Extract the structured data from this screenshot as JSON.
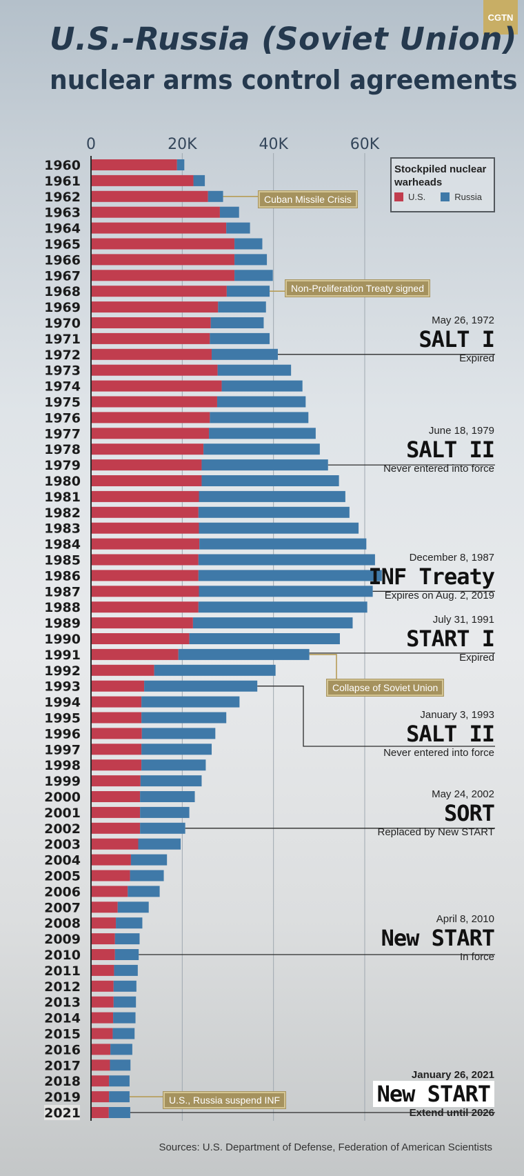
{
  "brand": "CGTN",
  "title": "U.S.-Russia (Soviet Union)",
  "subtitle": "nuclear arms control agreements",
  "legend": {
    "title": "Stockpiled nuclear warheads",
    "us": "U.S.",
    "russia": "Russia"
  },
  "colors": {
    "us": "#c13d4e",
    "russia": "#3f79a8",
    "tag": "#a5925e"
  },
  "chart_data": {
    "type": "bar",
    "orientation": "horizontal",
    "stacked": true,
    "xlim": [
      0,
      65000
    ],
    "xticks": [
      {
        "v": 0,
        "label": "0"
      },
      {
        "v": 20000,
        "label": "20K"
      },
      {
        "v": 40000,
        "label": "40K"
      },
      {
        "v": 60000,
        "label": "60K"
      }
    ],
    "grid": true,
    "categories": [
      "1960",
      "1961",
      "1962",
      "1963",
      "1964",
      "1965",
      "1966",
      "1967",
      "1968",
      "1969",
      "1970",
      "1971",
      "1972",
      "1973",
      "1974",
      "1975",
      "1976",
      "1977",
      "1978",
      "1979",
      "1980",
      "1981",
      "1982",
      "1983",
      "1984",
      "1985",
      "1986",
      "1987",
      "1988",
      "1989",
      "1990",
      "1991",
      "1992",
      "1993",
      "1994",
      "1995",
      "1996",
      "1997",
      "1998",
      "1999",
      "2000",
      "2001",
      "2002",
      "2003",
      "2004",
      "2005",
      "2006",
      "2007",
      "2008",
      "2009",
      "2010",
      "2011",
      "2012",
      "2013",
      "2014",
      "2015",
      "2016",
      "2017",
      "2018",
      "2019",
      "2021"
    ],
    "series": [
      {
        "name": "U.S.",
        "values": [
          18700,
          22300,
          25500,
          28100,
          29500,
          31300,
          31300,
          31300,
          29600,
          27700,
          26100,
          25900,
          26300,
          27600,
          28500,
          27500,
          25900,
          25700,
          24500,
          24100,
          24100,
          23500,
          23400,
          23500,
          23600,
          23400,
          23400,
          23500,
          23400,
          22200,
          21400,
          19000,
          13700,
          11500,
          10900,
          10900,
          11000,
          10900,
          10900,
          10700,
          10600,
          10600,
          10600,
          10200,
          8600,
          8400,
          7900,
          5700,
          5300,
          5100,
          5100,
          4900,
          4800,
          4800,
          4700,
          4600,
          4100,
          4000,
          3800,
          3800,
          3750
        ]
      },
      {
        "name": "Russia",
        "values": [
          1600,
          2500,
          3300,
          4200,
          5200,
          6100,
          7100,
          8400,
          9400,
          10500,
          11600,
          13100,
          14500,
          16100,
          17700,
          19400,
          21600,
          23400,
          25500,
          27700,
          30100,
          32100,
          33100,
          35000,
          36600,
          38700,
          40200,
          38100,
          37000,
          35000,
          33000,
          28700,
          26600,
          24800,
          21500,
          18600,
          16100,
          15400,
          14100,
          13400,
          12000,
          10800,
          9900,
          9300,
          7900,
          7400,
          7000,
          6800,
          5800,
          5400,
          5200,
          5200,
          5000,
          4900,
          4900,
          4800,
          4800,
          4500,
          4500,
          4500,
          4700
        ]
      }
    ]
  },
  "tags": {
    "cuban": "Cuban Missile Crisis",
    "npt": "Non-Proliferation Treaty signed",
    "collapse": "Collapse of Soviet Union",
    "inf_suspend": "U.S., Russia suspend INF"
  },
  "annotations": [
    {
      "date": "May 26, 1972",
      "name": "SALT I",
      "status": "Expired"
    },
    {
      "date": "June 18, 1979",
      "name": "SALT II",
      "status": "Never entered into force"
    },
    {
      "date": "December 8, 1987",
      "name": "INF Treaty",
      "status": "Expires on Aug. 2, 2019"
    },
    {
      "date": "July 31, 1991",
      "name": "START I",
      "status": "Expired"
    },
    {
      "date": "January 3, 1993",
      "name": "SALT II",
      "status": "Never entered into force"
    },
    {
      "date": "May 24, 2002",
      "name": "SORT",
      "status": "Replaced by New START"
    },
    {
      "date": "April 8, 2010",
      "name": "New START",
      "status": "In force"
    },
    {
      "date": "January 26, 2021",
      "name": "New START",
      "status": "Extend until 2026"
    }
  ],
  "source": "Sources: U.S. Department of Defense, Federation of American Scientists"
}
